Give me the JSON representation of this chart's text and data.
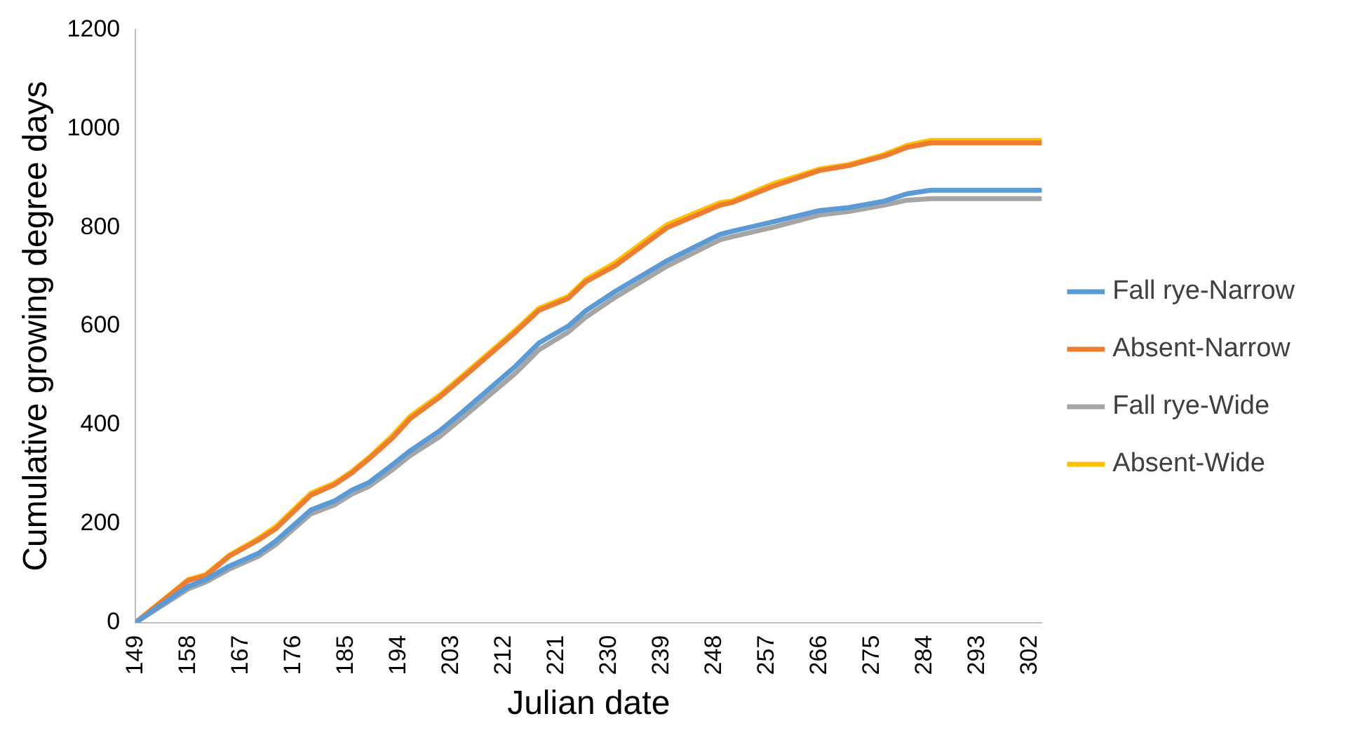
{
  "chart_data": {
    "type": "line",
    "xlabel": "Julian date",
    "ylabel": "Cumulative growing degree days",
    "x": [
      149,
      158,
      161,
      165,
      170,
      173,
      179,
      183,
      186,
      189,
      193,
      196,
      201,
      205,
      214,
      218,
      223,
      226,
      231,
      240,
      249,
      251,
      258,
      266,
      271,
      277,
      281,
      285,
      304
    ],
    "xlim": [
      149,
      304
    ],
    "xticks": [
      149,
      158,
      167,
      176,
      185,
      194,
      203,
      212,
      221,
      230,
      239,
      248,
      257,
      266,
      275,
      284,
      293,
      302
    ],
    "ylim": [
      0,
      1200
    ],
    "yticks": [
      0,
      200,
      400,
      600,
      800,
      1000,
      1200
    ],
    "grid": false,
    "legend": "right",
    "marker": "none",
    "line_style": "solid",
    "series": [
      {
        "name": "Fall rye-Narrow",
        "color": "#5b9bd5",
        "values": [
          0,
          73,
          87,
          114,
          140,
          165,
          228,
          246,
          268,
          284,
          320,
          348,
          388,
          427,
          519,
          566,
          600,
          631,
          670,
          733,
          786,
          792,
          811,
          834,
          840,
          853,
          868,
          875,
          875
        ]
      },
      {
        "name": "Absent-Narrow",
        "color": "#ed7d31",
        "values": [
          0,
          85,
          95,
          134,
          167,
          190,
          258,
          279,
          303,
          332,
          374,
          413,
          456,
          496,
          588,
          632,
          656,
          690,
          722,
          800,
          845,
          850,
          883,
          915,
          925,
          944,
          962,
          971,
          971
        ]
      },
      {
        "name": "Fall rye-Wide",
        "color": "#a5a5a5",
        "values": [
          0,
          68,
          82,
          108,
          134,
          158,
          220,
          238,
          260,
          276,
          310,
          338,
          376,
          415,
          505,
          552,
          588,
          618,
          658,
          722,
          775,
          781,
          800,
          825,
          832,
          845,
          855,
          858,
          858
        ]
      },
      {
        "name": "Absent-Wide",
        "color": "#ffc000",
        "values": [
          0,
          87,
          97,
          136,
          170,
          194,
          262,
          282,
          306,
          335,
          379,
          418,
          460,
          500,
          592,
          636,
          660,
          694,
          728,
          806,
          850,
          853,
          888,
          918,
          927,
          947,
          966,
          976,
          976
        ]
      }
    ]
  }
}
